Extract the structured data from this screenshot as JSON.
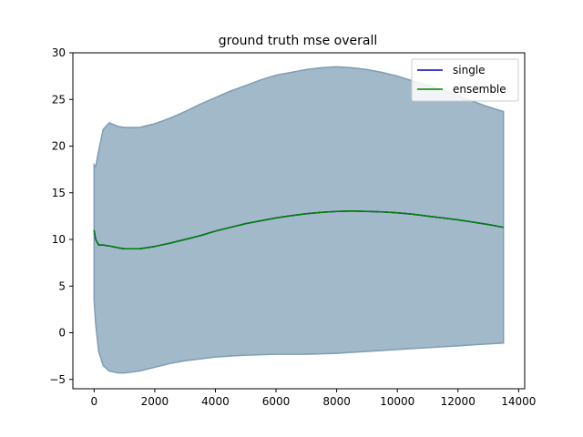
{
  "chart_data": {
    "type": "line",
    "title": "ground truth mse overall",
    "xlabel": "",
    "ylabel": "",
    "xlim": [
      -700,
      14200
    ],
    "ylim": [
      -6,
      30
    ],
    "xticks": [
      0,
      2000,
      4000,
      6000,
      8000,
      10000,
      12000,
      14000
    ],
    "yticks": [
      -5,
      0,
      5,
      10,
      15,
      20,
      25,
      30
    ],
    "xtick_labels": [
      "0",
      "2000",
      "4000",
      "6000",
      "8000",
      "10000",
      "12000",
      "14000"
    ],
    "ytick_labels": [
      "−5",
      "0",
      "5",
      "10",
      "15",
      "20",
      "25",
      "30"
    ],
    "grid": false,
    "legend_position": "top-right",
    "x": [
      0,
      50,
      150,
      300,
      500,
      800,
      1000,
      1500,
      2000,
      2500,
      3000,
      3500,
      4000,
      4500,
      5000,
      5500,
      6000,
      6500,
      7000,
      7500,
      8000,
      8500,
      9000,
      9500,
      10000,
      10500,
      11000,
      11500,
      12000,
      12500,
      13000,
      13500
    ],
    "band": {
      "color": "#a2b9c9",
      "edge_color": "#7f9db4",
      "upper": [
        18.0,
        17.8,
        19.5,
        21.8,
        22.5,
        22.1,
        22.0,
        22.0,
        22.4,
        23.0,
        23.7,
        24.5,
        25.2,
        25.9,
        26.5,
        27.1,
        27.6,
        27.9,
        28.2,
        28.4,
        28.5,
        28.4,
        28.2,
        27.9,
        27.5,
        27.0,
        26.5,
        26.0,
        25.4,
        24.8,
        24.2,
        23.7
      ],
      "lower": [
        3.5,
        1.0,
        -2.0,
        -3.5,
        -4.1,
        -4.3,
        -4.3,
        -4.1,
        -3.7,
        -3.3,
        -3.0,
        -2.8,
        -2.6,
        -2.5,
        -2.4,
        -2.35,
        -2.3,
        -2.3,
        -2.3,
        -2.25,
        -2.2,
        -2.1,
        -2.0,
        -1.9,
        -1.8,
        -1.7,
        -1.6,
        -1.5,
        -1.4,
        -1.3,
        -1.2,
        -1.1
      ]
    },
    "series": [
      {
        "name": "single",
        "color": "#0000cc",
        "values": [
          11.0,
          10.0,
          9.4,
          9.4,
          9.3,
          9.1,
          9.0,
          9.0,
          9.25,
          9.6,
          10.0,
          10.4,
          10.9,
          11.3,
          11.7,
          12.0,
          12.3,
          12.55,
          12.75,
          12.9,
          13.0,
          13.05,
          13.0,
          12.95,
          12.85,
          12.7,
          12.5,
          12.3,
          12.1,
          11.85,
          11.6,
          11.3
        ]
      },
      {
        "name": "ensemble",
        "color": "#008000",
        "values": [
          11.0,
          10.0,
          9.4,
          9.4,
          9.3,
          9.1,
          9.0,
          9.0,
          9.25,
          9.6,
          10.0,
          10.4,
          10.9,
          11.3,
          11.7,
          12.0,
          12.3,
          12.55,
          12.75,
          12.9,
          13.0,
          13.05,
          13.0,
          12.95,
          12.85,
          12.7,
          12.5,
          12.3,
          12.1,
          11.85,
          11.6,
          11.3
        ]
      }
    ]
  }
}
